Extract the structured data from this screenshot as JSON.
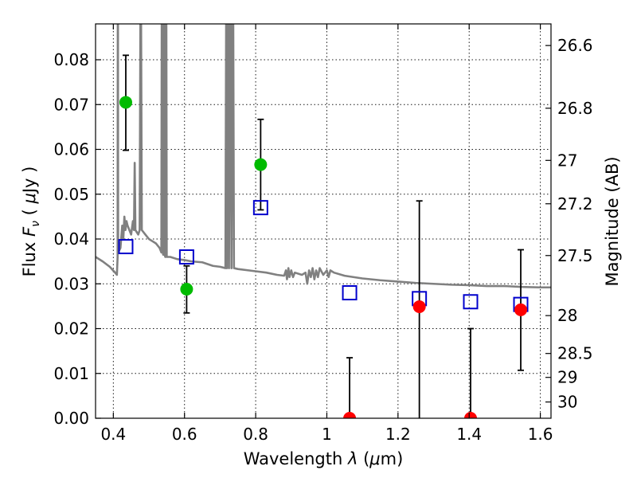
{
  "chart_data": {
    "type": "scatter",
    "xlabel": "Wavelength",
    "xlabel_math": "λ",
    "xlabel_unit_open": " (",
    "xlabel_unit_math": "μ",
    "xlabel_unit_rest": "m)",
    "ylabel": "Flux",
    "ylabel_math_F": "F",
    "ylabel_math_sub": "ν",
    "ylabel_unit_open": "(",
    "ylabel_unit_math": "μ",
    "ylabel_unit_rest": "Jy )",
    "y2label": "Magnitude (AB)",
    "xlim": [
      0.35,
      1.63
    ],
    "ylim": [
      0.0,
      0.088
    ],
    "grid": true,
    "x_ticks": [
      {
        "value": 0.4,
        "label": "0.4"
      },
      {
        "value": 0.6,
        "label": "0.6"
      },
      {
        "value": 0.8,
        "label": "0.8"
      },
      {
        "value": 1.0,
        "label": "1"
      },
      {
        "value": 1.2,
        "label": "1.2"
      },
      {
        "value": 1.4,
        "label": "1.4"
      },
      {
        "value": 1.6,
        "label": "1.6"
      }
    ],
    "y_ticks": [
      {
        "value": 0.0,
        "label": "0.00"
      },
      {
        "value": 0.01,
        "label": "0.01"
      },
      {
        "value": 0.02,
        "label": "0.02"
      },
      {
        "value": 0.03,
        "label": "0.03"
      },
      {
        "value": 0.04,
        "label": "0.04"
      },
      {
        "value": 0.05,
        "label": "0.05"
      },
      {
        "value": 0.06,
        "label": "0.06"
      },
      {
        "value": 0.07,
        "label": "0.07"
      },
      {
        "value": 0.08,
        "label": "0.08"
      }
    ],
    "y2_ticks": [
      {
        "value": 26.6,
        "label": "26.6"
      },
      {
        "value": 26.8,
        "label": "26.8"
      },
      {
        "value": 27.0,
        "label": "27"
      },
      {
        "value": 27.2,
        "label": "27.2"
      },
      {
        "value": 27.5,
        "label": "27.5"
      },
      {
        "value": 28.0,
        "label": "28"
      },
      {
        "value": 28.5,
        "label": "28.5"
      },
      {
        "value": 29.0,
        "label": "29"
      },
      {
        "value": 30.0,
        "label": "30"
      }
    ],
    "colors": {
      "detection": "#00bb00",
      "nondetection": "#ff0000",
      "model": "#0000cc",
      "spectrum": "#808080",
      "errorbar": "#000000"
    },
    "observed_optical": [
      {
        "x": 0.435,
        "y": 0.0705,
        "ylow": 0.0598,
        "yhigh": 0.081
      },
      {
        "x": 0.606,
        "y": 0.0288,
        "ylow": 0.0235,
        "yhigh": 0.034
      },
      {
        "x": 0.814,
        "y": 0.0566,
        "ylow": 0.0465,
        "yhigh": 0.0667
      }
    ],
    "observed_nir": [
      {
        "x": 1.064,
        "y": 0.0,
        "ylow": 0.0,
        "yhigh": 0.0135
      },
      {
        "x": 1.26,
        "y": 0.0249,
        "ylow": 0.0,
        "yhigh": 0.0485
      },
      {
        "x": 1.404,
        "y": 0.0,
        "ylow": 0.0,
        "yhigh": 0.02
      },
      {
        "x": 1.545,
        "y": 0.0242,
        "ylow": 0.0107,
        "yhigh": 0.0376
      }
    ],
    "model_photometry": [
      {
        "x": 0.435,
        "y": 0.0383
      },
      {
        "x": 0.606,
        "y": 0.036
      },
      {
        "x": 0.814,
        "y": 0.047
      },
      {
        "x": 1.064,
        "y": 0.028
      },
      {
        "x": 1.26,
        "y": 0.0267
      },
      {
        "x": 1.404,
        "y": 0.026
      },
      {
        "x": 1.545,
        "y": 0.0254
      }
    ],
    "spectrum": [
      [
        0.35,
        0.036
      ],
      [
        0.37,
        0.035
      ],
      [
        0.39,
        0.0338
      ],
      [
        0.405,
        0.0325
      ],
      [
        0.41,
        0.032
      ],
      [
        0.412,
        0.036
      ],
      [
        0.4125,
        0.088
      ],
      [
        0.413,
        0.088
      ],
      [
        0.4135,
        0.037
      ],
      [
        0.42,
        0.038
      ],
      [
        0.425,
        0.043
      ],
      [
        0.428,
        0.04
      ],
      [
        0.431,
        0.045
      ],
      [
        0.434,
        0.042
      ],
      [
        0.437,
        0.044
      ],
      [
        0.44,
        0.043
      ],
      [
        0.445,
        0.042
      ],
      [
        0.45,
        0.041
      ],
      [
        0.455,
        0.044
      ],
      [
        0.458,
        0.042
      ],
      [
        0.46,
        0.057
      ],
      [
        0.462,
        0.042
      ],
      [
        0.47,
        0.041
      ],
      [
        0.474,
        0.042
      ],
      [
        0.476,
        0.088
      ],
      [
        0.478,
        0.088
      ],
      [
        0.48,
        0.042
      ],
      [
        0.49,
        0.041
      ],
      [
        0.5,
        0.04
      ],
      [
        0.51,
        0.0395
      ],
      [
        0.52,
        0.039
      ],
      [
        0.53,
        0.038
      ],
      [
        0.535,
        0.037
      ],
      [
        0.536,
        0.088
      ],
      [
        0.538,
        0.088
      ],
      [
        0.539,
        0.037
      ],
      [
        0.54,
        0.0365
      ],
      [
        0.541,
        0.088
      ],
      [
        0.543,
        0.088
      ],
      [
        0.544,
        0.0365
      ],
      [
        0.546,
        0.036
      ],
      [
        0.547,
        0.088
      ],
      [
        0.549,
        0.088
      ],
      [
        0.55,
        0.036
      ],
      [
        0.56,
        0.036
      ],
      [
        0.58,
        0.0355
      ],
      [
        0.6,
        0.0353
      ],
      [
        0.62,
        0.035
      ],
      [
        0.65,
        0.0348
      ],
      [
        0.68,
        0.034
      ],
      [
        0.7,
        0.0338
      ],
      [
        0.715,
        0.0335
      ],
      [
        0.717,
        0.088
      ],
      [
        0.719,
        0.0335
      ],
      [
        0.721,
        0.088
      ],
      [
        0.723,
        0.088
      ],
      [
        0.725,
        0.0335
      ],
      [
        0.728,
        0.088
      ],
      [
        0.73,
        0.088
      ],
      [
        0.732,
        0.0335
      ],
      [
        0.735,
        0.088
      ],
      [
        0.737,
        0.088
      ],
      [
        0.739,
        0.0335
      ],
      [
        0.75,
        0.0333
      ],
      [
        0.78,
        0.033
      ],
      [
        0.8,
        0.0328
      ],
      [
        0.83,
        0.0325
      ],
      [
        0.86,
        0.032
      ],
      [
        0.88,
        0.0318
      ],
      [
        0.885,
        0.033
      ],
      [
        0.888,
        0.031
      ],
      [
        0.892,
        0.0335
      ],
      [
        0.895,
        0.0315
      ],
      [
        0.9,
        0.033
      ],
      [
        0.905,
        0.0315
      ],
      [
        0.91,
        0.0325
      ],
      [
        0.93,
        0.032
      ],
      [
        0.94,
        0.0325
      ],
      [
        0.945,
        0.03
      ],
      [
        0.95,
        0.033
      ],
      [
        0.955,
        0.0315
      ],
      [
        0.96,
        0.0335
      ],
      [
        0.965,
        0.031
      ],
      [
        0.97,
        0.033
      ],
      [
        0.975,
        0.0315
      ],
      [
        0.98,
        0.0335
      ],
      [
        0.99,
        0.032
      ],
      [
        1.0,
        0.033
      ],
      [
        1.005,
        0.0315
      ],
      [
        1.01,
        0.033
      ],
      [
        1.02,
        0.0325
      ],
      [
        1.05,
        0.0318
      ],
      [
        1.1,
        0.0312
      ],
      [
        1.15,
        0.0308
      ],
      [
        1.2,
        0.0305
      ],
      [
        1.25,
        0.0302
      ],
      [
        1.3,
        0.03
      ],
      [
        1.35,
        0.0298
      ],
      [
        1.4,
        0.0297
      ],
      [
        1.45,
        0.0295
      ],
      [
        1.5,
        0.0295
      ],
      [
        1.55,
        0.0293
      ],
      [
        1.6,
        0.0292
      ],
      [
        1.63,
        0.0292
      ]
    ]
  }
}
